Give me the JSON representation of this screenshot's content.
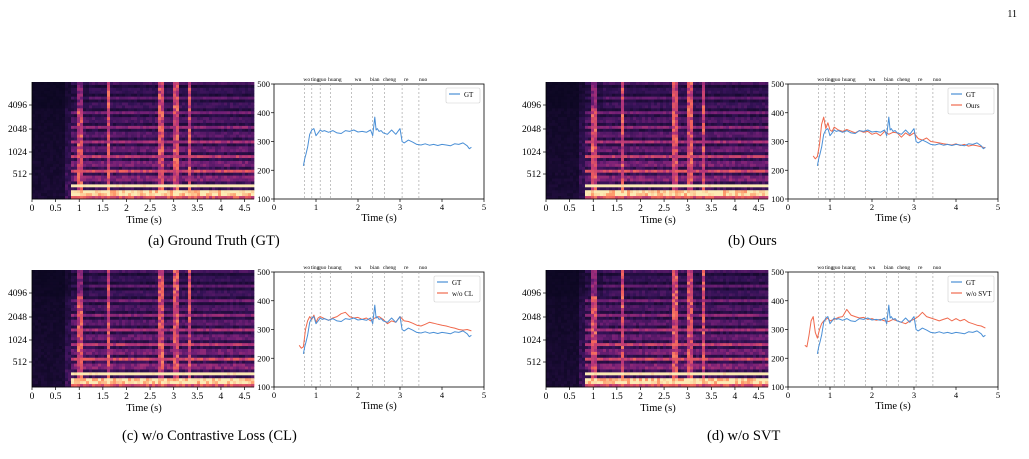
{
  "page_number": "11",
  "colors": {
    "gt": "#4a8fd6",
    "pred": "#f06a4e",
    "axis": "#000000",
    "syl": "#9a9a9a"
  },
  "panels": [
    {
      "caption": "(a) Ground Truth (GT)",
      "spec": {
        "xlabel": "Time (s)",
        "xticks": [
          "0",
          "0.5",
          "1",
          "1.5",
          "2",
          "2.5",
          "3",
          "3.5",
          "4",
          "4.5"
        ],
        "yticks": [
          "512",
          "1024",
          "2048",
          "4096"
        ]
      },
      "pitch": {
        "xlabel": "Time (s)",
        "xticks": [
          "0",
          "1",
          "2",
          "3",
          "4",
          "5"
        ],
        "yticks": [
          "100",
          "200",
          "300",
          "400",
          "500"
        ],
        "legend": [
          "GT"
        ]
      }
    },
    {
      "caption": "(b) Ours",
      "spec": {
        "xlabel": "Time (s)",
        "xticks": [
          "0",
          "0.5",
          "1",
          "1.5",
          "2",
          "2.5",
          "3",
          "3.5",
          "4",
          "4.5"
        ],
        "yticks": [
          "512",
          "1024",
          "2048",
          "4096"
        ]
      },
      "pitch": {
        "xlabel": "Time (s)",
        "xticks": [
          "0",
          "1",
          "2",
          "3",
          "4",
          "5"
        ],
        "yticks": [
          "100",
          "200",
          "300",
          "400",
          "500"
        ],
        "legend": [
          "GT",
          "Ours"
        ]
      }
    },
    {
      "caption": "(c) w/o Contrastive Loss (CL)",
      "spec": {
        "xlabel": "Time (s)",
        "xticks": [
          "0",
          "0.5",
          "1",
          "1.5",
          "2",
          "2.5",
          "3",
          "3.5",
          "4",
          "4.5"
        ],
        "yticks": [
          "512",
          "1024",
          "2048",
          "4096"
        ]
      },
      "pitch": {
        "xlabel": "Time (s)",
        "xticks": [
          "0",
          "1",
          "2",
          "3",
          "4",
          "5"
        ],
        "yticks": [
          "100",
          "200",
          "300",
          "400",
          "500"
        ],
        "legend": [
          "GT",
          "w/o CL"
        ]
      }
    },
    {
      "caption": "(d) w/o SVT",
      "spec": {
        "xlabel": "Time (s)",
        "xticks": [
          "0",
          "0.5",
          "1",
          "1.5",
          "2",
          "2.5",
          "3",
          "3.5",
          "4",
          "4.5"
        ],
        "yticks": [
          "512",
          "1024",
          "2048",
          "4096"
        ]
      },
      "pitch": {
        "xlabel": "Time (s)",
        "xticks": [
          "0",
          "1",
          "2",
          "3",
          "4",
          "5"
        ],
        "yticks": [
          "100",
          "200",
          "300",
          "400",
          "500"
        ],
        "legend": [
          "GT",
          "w/o SVT"
        ]
      }
    }
  ],
  "chart_data": [
    {
      "type": "heatmap",
      "description_free": true,
      "xlabel": "Time (s)",
      "xlim": [
        0,
        4.7
      ],
      "ylabel": "",
      "yticks": [
        512,
        1024,
        2048,
        4096
      ]
    },
    {
      "type": "line",
      "xlabel": "Time (s)",
      "xlim": [
        0,
        5
      ],
      "ylim": [
        100,
        500
      ],
      "syllables": [
        {
          "label": "wo",
          "t": 0.73
        },
        {
          "label": "ting",
          "t": 0.9
        },
        {
          "label": "guo",
          "t": 1.1
        },
        {
          "label": "huang",
          "t": 1.35
        },
        {
          "label": "wu",
          "t": 1.85
        },
        {
          "label": "bian",
          "t": 2.35
        },
        {
          "label": "cheng",
          "t": 2.63
        },
        {
          "label": "re",
          "t": 3.05
        },
        {
          "label": "nuo",
          "t": 3.45
        }
      ],
      "series": [
        {
          "name": "GT",
          "x": [
            0.7,
            0.73,
            0.76,
            0.8,
            0.85,
            0.9,
            0.95,
            1.0,
            1.05,
            1.1,
            1.15,
            1.2,
            1.3,
            1.4,
            1.5,
            1.6,
            1.7,
            1.8,
            1.9,
            2.0,
            2.1,
            2.2,
            2.3,
            2.35,
            2.4,
            2.43,
            2.46,
            2.5,
            2.55,
            2.6,
            2.7,
            2.8,
            2.9,
            3.0,
            3.05,
            3.1,
            3.2,
            3.3,
            3.4,
            3.5,
            3.6,
            3.7,
            3.8,
            3.9,
            4.0,
            4.1,
            4.2,
            4.3,
            4.4,
            4.5,
            4.6,
            4.65,
            4.7
          ],
          "y": [
            215,
            240,
            255,
            280,
            325,
            340,
            345,
            320,
            330,
            340,
            335,
            338,
            332,
            338,
            330,
            328,
            338,
            335,
            340,
            333,
            335,
            332,
            340,
            320,
            385,
            340,
            345,
            335,
            338,
            330,
            325,
            340,
            325,
            345,
            300,
            295,
            305,
            298,
            290,
            288,
            292,
            287,
            290,
            286,
            290,
            288,
            285,
            292,
            290,
            295,
            285,
            275,
            280
          ]
        },
        {
          "name": "Ours",
          "x": [
            0.6,
            0.65,
            0.7,
            0.75,
            0.8,
            0.85,
            0.9,
            0.95,
            1.0,
            1.05,
            1.1,
            1.2,
            1.3,
            1.4,
            1.5,
            1.6,
            1.7,
            1.8,
            1.9,
            2.0,
            2.1,
            2.2,
            2.3,
            2.4,
            2.5,
            2.6,
            2.7,
            2.8,
            2.9,
            3.0,
            3.1,
            3.2,
            3.3,
            3.4,
            3.5,
            3.6,
            3.7,
            3.8,
            3.9,
            4.0,
            4.1,
            4.2,
            4.3,
            4.4,
            4.5,
            4.6,
            4.7
          ],
          "y": [
            250,
            240,
            248,
            290,
            360,
            385,
            345,
            365,
            340,
            335,
            350,
            340,
            335,
            342,
            336,
            330,
            338,
            332,
            335,
            325,
            330,
            320,
            335,
            325,
            332,
            330,
            315,
            330,
            320,
            330,
            310,
            305,
            312,
            300,
            298,
            295,
            292,
            290,
            288,
            292,
            286,
            290,
            284,
            288,
            285,
            282,
            278
          ]
        },
        {
          "name": "w/o CL",
          "x": [
            0.6,
            0.65,
            0.7,
            0.75,
            0.8,
            0.85,
            0.9,
            0.95,
            1.0,
            1.05,
            1.1,
            1.2,
            1.3,
            1.4,
            1.5,
            1.6,
            1.7,
            1.8,
            1.9,
            2.0,
            2.1,
            2.2,
            2.3,
            2.4,
            2.5,
            2.6,
            2.7,
            2.8,
            2.9,
            3.0,
            3.1,
            3.2,
            3.3,
            3.4,
            3.5,
            3.6,
            3.7,
            3.8,
            3.9,
            4.0,
            4.1,
            4.2,
            4.3,
            4.4,
            4.5,
            4.6,
            4.7
          ],
          "y": [
            245,
            235,
            240,
            300,
            330,
            345,
            335,
            350,
            325,
            340,
            345,
            338,
            332,
            340,
            345,
            355,
            360,
            345,
            340,
            342,
            335,
            340,
            330,
            340,
            345,
            335,
            320,
            330,
            325,
            345,
            330,
            328,
            322,
            315,
            312,
            318,
            325,
            322,
            318,
            315,
            312,
            308,
            305,
            300,
            298,
            300,
            295
          ]
        },
        {
          "name": "w/o SVT",
          "x": [
            0.4,
            0.45,
            0.5,
            0.55,
            0.6,
            0.65,
            0.7,
            0.75,
            0.8,
            0.85,
            0.9,
            0.95,
            1.0,
            1.1,
            1.2,
            1.3,
            1.4,
            1.5,
            1.6,
            1.7,
            1.8,
            1.9,
            2.0,
            2.1,
            2.2,
            2.3,
            2.4,
            2.5,
            2.6,
            2.7,
            2.8,
            2.9,
            3.0,
            3.1,
            3.2,
            3.3,
            3.4,
            3.5,
            3.6,
            3.7,
            3.8,
            3.9,
            4.0,
            4.1,
            4.2,
            4.3,
            4.4,
            4.5,
            4.6,
            4.7
          ],
          "y": [
            245,
            240,
            280,
            330,
            345,
            290,
            270,
            300,
            320,
            330,
            335,
            340,
            330,
            335,
            342,
            345,
            370,
            350,
            345,
            340,
            342,
            335,
            338,
            332,
            335,
            330,
            328,
            335,
            330,
            325,
            320,
            330,
            335,
            345,
            360,
            345,
            340,
            335,
            330,
            335,
            340,
            330,
            338,
            330,
            335,
            325,
            320,
            315,
            312,
            305
          ]
        }
      ],
      "legend": "top-right"
    }
  ]
}
